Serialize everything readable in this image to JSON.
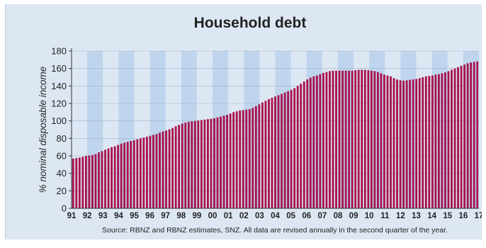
{
  "chart_data": {
    "type": "bar",
    "title": "Household debt",
    "ylabel": "% nominal disposable income",
    "xlabel": "",
    "source": "Source: RBNZ and RBNZ estimates, SNZ. All data are revised annually in the second quarter of the year.",
    "ylim": [
      0,
      180
    ],
    "yticks": [
      0,
      20,
      40,
      60,
      80,
      100,
      120,
      140,
      160,
      180
    ],
    "xticks": [
      "91",
      "92",
      "93",
      "94",
      "95",
      "96",
      "97",
      "98",
      "99",
      "00",
      "01",
      "02",
      "03",
      "04",
      "05",
      "06",
      "07",
      "08",
      "09",
      "10",
      "11",
      "12",
      "13",
      "14",
      "15",
      "16",
      "17"
    ],
    "frequency": "quarterly",
    "bar_color": "#a8104a",
    "band_color": "#bfd5ee",
    "values": [
      57,
      57.5,
      58,
      59,
      60,
      60.5,
      61,
      62,
      64,
      65.5,
      67,
      68.5,
      70,
      71,
      72.5,
      74,
      75,
      76,
      77,
      78,
      79,
      80,
      81,
      82,
      83,
      84,
      85,
      86.5,
      88,
      89,
      90.5,
      92,
      94,
      95.5,
      97,
      98,
      99,
      99.5,
      100,
      100.5,
      101,
      101.5,
      102,
      102.5,
      103,
      104,
      105,
      106,
      107,
      108.5,
      110,
      111,
      112,
      112.5,
      113,
      113.5,
      115,
      117,
      119,
      121,
      123,
      125,
      126.5,
      128,
      129.5,
      131,
      132.5,
      134,
      135.5,
      137.5,
      140,
      142.5,
      145,
      147.5,
      149.5,
      151,
      152,
      153.5,
      155,
      156,
      157,
      157.5,
      157.5,
      157.5,
      157.5,
      157.5,
      157.5,
      157.5,
      158,
      158.5,
      158.5,
      158.5,
      158,
      157.5,
      157,
      156,
      154.5,
      153,
      152,
      151,
      149,
      147.5,
      146.5,
      146,
      146.5,
      147,
      147.5,
      148,
      149,
      150,
      151,
      151.5,
      152,
      153,
      153.5,
      154.5,
      155.5,
      157,
      158.5,
      160,
      161.5,
      163,
      164.5,
      166,
      167,
      167.5,
      168
    ]
  }
}
